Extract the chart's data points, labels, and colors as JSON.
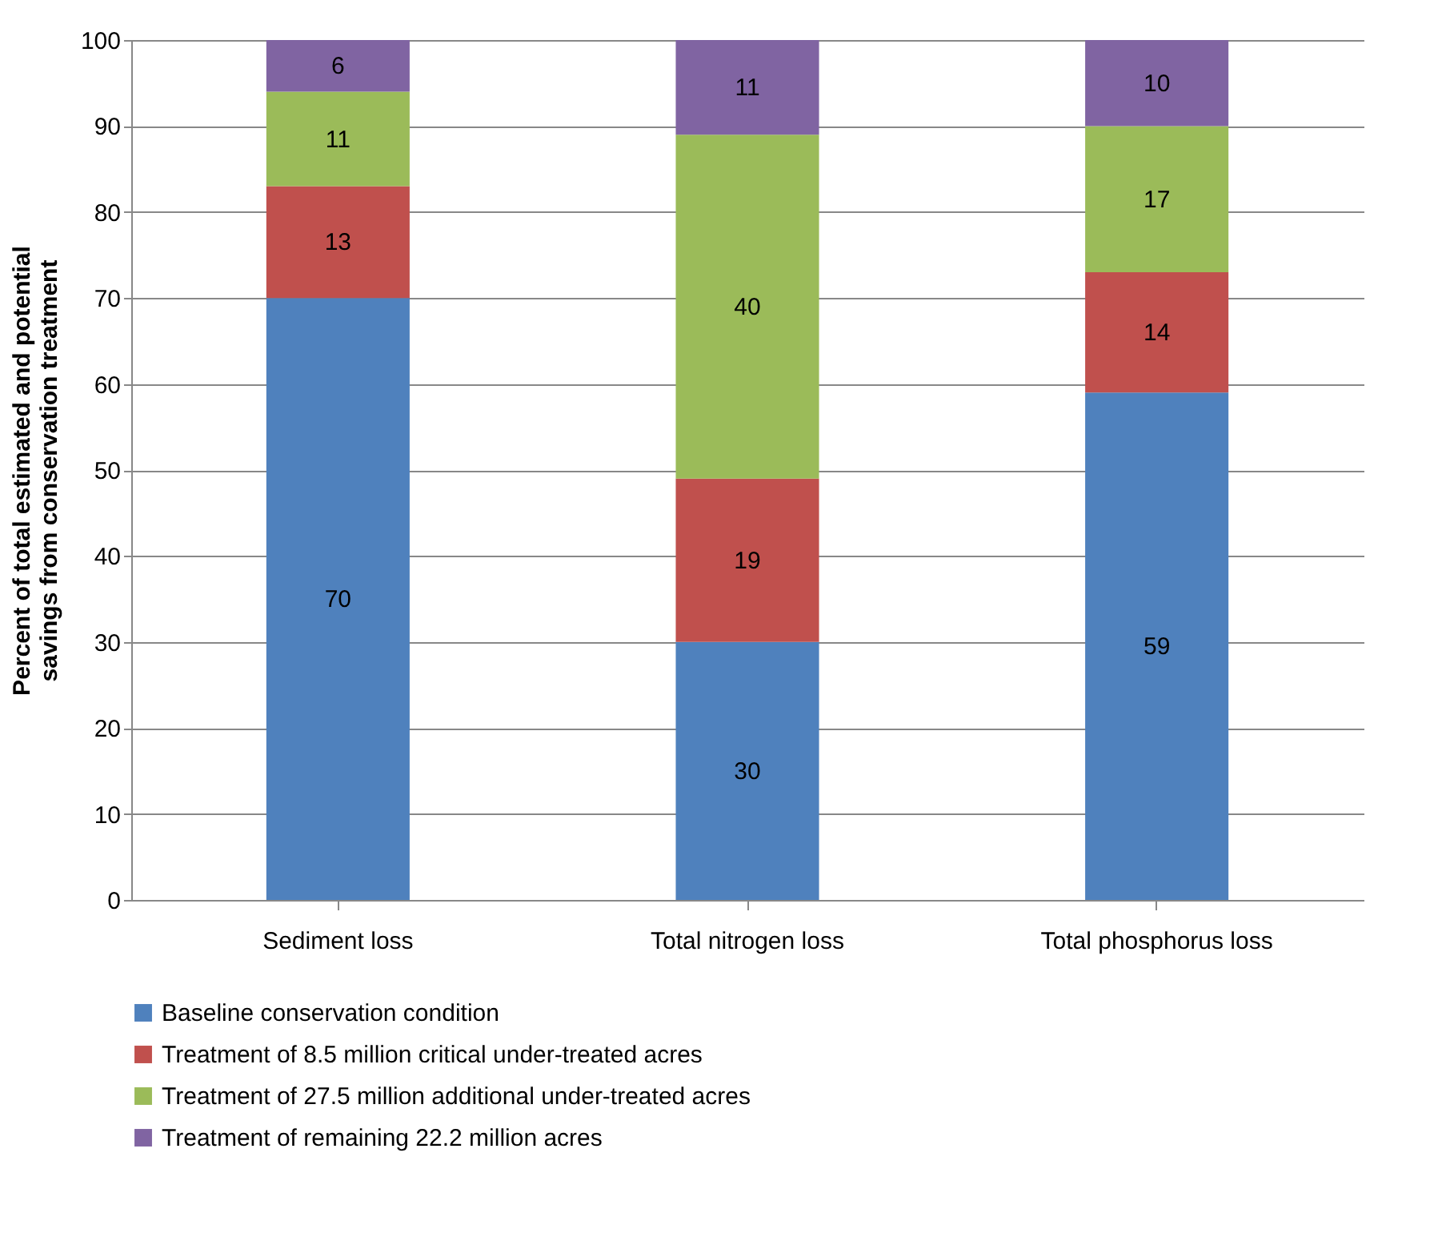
{
  "chart_data": {
    "type": "bar",
    "stacked": true,
    "ylabel": "Percent of total estimated and potential savings from conservation treatment",
    "categories": [
      "Sediment loss",
      "Total nitrogen loss",
      "Total phosphorus loss"
    ],
    "series": [
      {
        "name": "Baseline conservation condition",
        "color": "#4f81bd",
        "values": [
          70,
          30,
          59
        ]
      },
      {
        "name": "Treatment of 8.5 million critical under-treated acres",
        "color": "#c0504d",
        "values": [
          13,
          19,
          14
        ]
      },
      {
        "name": "Treatment of 27.5 million additional under-treated acres",
        "color": "#9bbb59",
        "values": [
          11,
          40,
          17
        ]
      },
      {
        "name": "Treatment of remaining 22.2 million acres",
        "color": "#8064a2",
        "values": [
          6,
          11,
          10
        ]
      }
    ],
    "ylim": [
      0,
      100
    ],
    "yticks": [
      0,
      10,
      20,
      30,
      40,
      50,
      60,
      70,
      80,
      90,
      100
    ],
    "grid": "y",
    "legend": "bottom",
    "data_labels": true
  }
}
